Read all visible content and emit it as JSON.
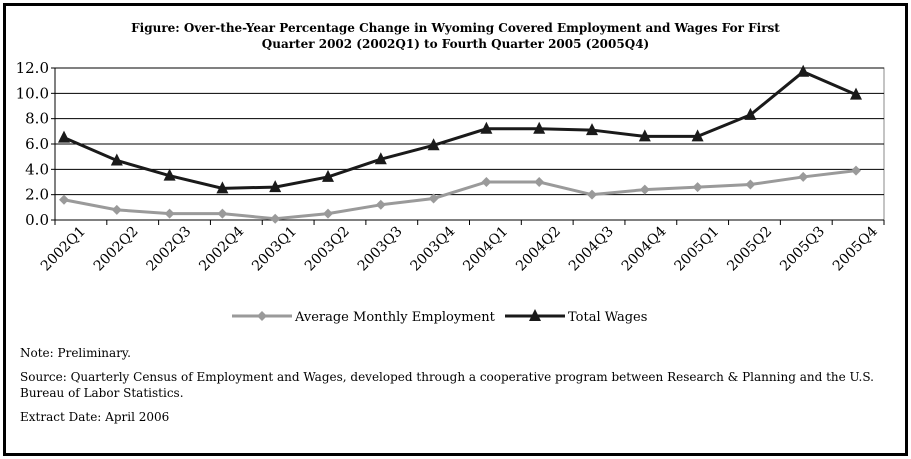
{
  "chart_data": {
    "type": "line",
    "title": "Figure: Over-the-Year Percentage Change in Wyoming Covered Employment and Wages For First Quarter 2002 (2002Q1) to Fourth Quarter 2005 (2005Q4)",
    "title_lines": [
      "Figure: Over-the-Year Percentage Change in Wyoming Covered Employment and Wages For First",
      "Quarter 2002 (2002Q1) to Fourth Quarter 2005 (2005Q4)"
    ],
    "xlabel": "",
    "ylabel": "",
    "ylim": [
      0,
      12
    ],
    "yticks": [
      "0.0",
      "2.0",
      "4.0",
      "6.0",
      "8.0",
      "10.0",
      "12.0"
    ],
    "categories": [
      "2002Q1",
      "2002Q2",
      "2002Q3",
      "2002Q4",
      "2003Q1",
      "2003Q2",
      "2003Q3",
      "2003Q4",
      "2004Q1",
      "2004Q2",
      "2004Q3",
      "2004Q4",
      "2005Q1",
      "2005Q2",
      "2005Q3",
      "2005Q4"
    ],
    "grid": true,
    "legend": "bottom",
    "series": [
      {
        "name": "Average Monthly Employment",
        "color": "#9a9a9a",
        "marker": "diamond",
        "values": [
          1.6,
          0.8,
          0.5,
          0.5,
          0.1,
          0.5,
          1.2,
          1.7,
          3.0,
          3.0,
          2.0,
          2.4,
          2.6,
          2.8,
          3.4,
          3.9
        ]
      },
      {
        "name": "Total Wages",
        "color": "#1a1a1a",
        "marker": "triangle",
        "values": [
          6.5,
          4.7,
          3.5,
          2.5,
          2.6,
          3.4,
          4.8,
          5.9,
          7.2,
          7.2,
          7.1,
          6.6,
          6.6,
          8.3,
          11.7,
          9.9
        ]
      }
    ]
  },
  "notes": {
    "note": "Note: Preliminary.",
    "source": "Source: Quarterly Census of Employment and Wages, developed through a cooperative program between Research & Planning and the U.S. Bureau of Labor Statistics.",
    "extract": "Extract Date: April 2006"
  }
}
